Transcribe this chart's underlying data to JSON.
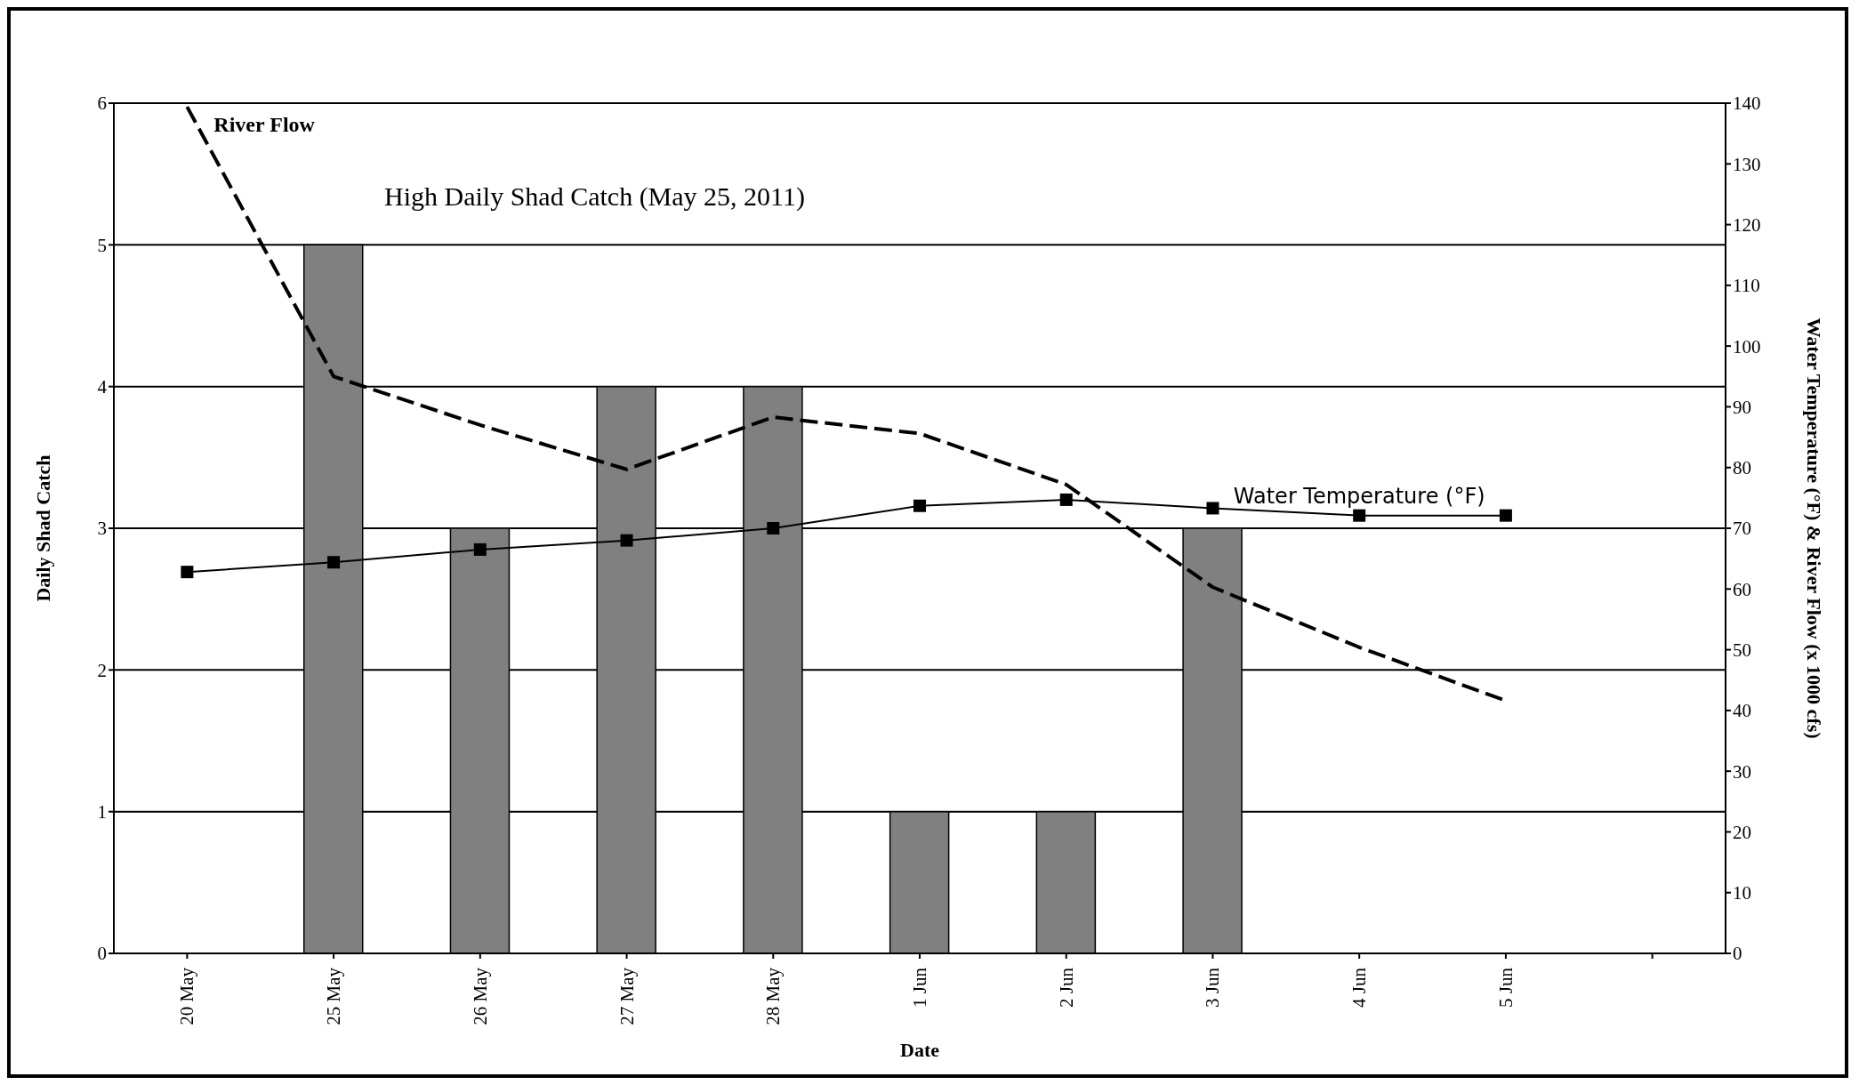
{
  "chart_data": {
    "type": "bar",
    "xlabel": "Date",
    "ylabel": "Daily Shad Catch",
    "y2label": "Water Temperature (°F) & River Flow (x 1000 cfs)",
    "annotations": [
      "High Daily Shad Catch (May 25, 2011)"
    ],
    "categories": [
      "20 May",
      "25 May",
      "26 May",
      "27 May",
      "28 May",
      "1 Jun",
      "2 Jun",
      "3 Jun",
      "4 Jun",
      "5 Jun",
      null
    ],
    "series": [
      {
        "color": "#808080",
        "values": [
          0,
          5,
          3,
          4,
          4,
          1,
          1,
          3,
          0,
          0,
          null
        ]
      },
      {
        "type": "line",
        "name": "Water Temperature (°F)",
        "axis": "y2",
        "color": "#000000",
        "marker": "square",
        "line_style": "solid",
        "values": [
          62.8,
          64.4,
          66.5,
          68,
          70,
          73.7,
          74.7,
          73.3,
          72.1,
          72.1,
          null
        ]
      },
      {
        "type": "line",
        "name": "River Flow",
        "axis": "y2",
        "color": "#000000",
        "marker": "none",
        "line_style": "dashed",
        "values": [
          139.4,
          95,
          87,
          79.7,
          88.3,
          85.6,
          77.2,
          60.3,
          50.4,
          41.6,
          null
        ]
      }
    ],
    "ylim": [
      0,
      6
    ],
    "yticks": [
      0,
      1,
      2,
      3,
      4,
      5,
      6
    ],
    "y2lim": [
      0,
      140
    ],
    "y2ticks": [
      0,
      10,
      20,
      30,
      40,
      50,
      60,
      70,
      80,
      90,
      100,
      110,
      120,
      130,
      140
    ],
    "grid": "y"
  }
}
